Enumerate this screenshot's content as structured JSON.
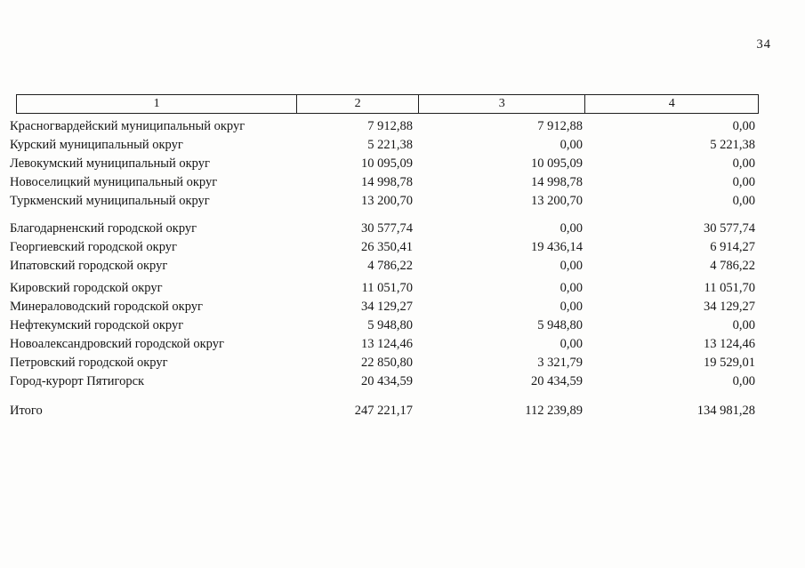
{
  "page": {
    "number": "34",
    "ink_color": "#161616",
    "background_color": "#fdfdfc"
  },
  "table": {
    "columns": [
      "1",
      "2",
      "3",
      "4"
    ],
    "rows": [
      {
        "name": "Красногвардейский муниципальный округ",
        "c2": "7 912,88",
        "c3": "7 912,88",
        "c4": "0,00"
      },
      {
        "name": "Курский муниципальный округ",
        "c2": "5 221,38",
        "c3": "0,00",
        "c4": "5 221,38"
      },
      {
        "name": "Левокумский муниципальный округ",
        "c2": "10 095,09",
        "c3": "10 095,09",
        "c4": "0,00"
      },
      {
        "name": "Новоселицкий муниципальный округ",
        "c2": "14 998,78",
        "c3": "14 998,78",
        "c4": "0,00"
      },
      {
        "name": "Туркменский муниципальный округ",
        "c2": "13 200,70",
        "c3": "13 200,70",
        "c4": "0,00"
      },
      {
        "name": "Благодарненский городской округ",
        "c2": "30 577,74",
        "c3": "0,00",
        "c4": "30 577,74"
      },
      {
        "name": "Георгиевский городской округ",
        "c2": "26 350,41",
        "c3": "19 436,14",
        "c4": "6 914,27"
      },
      {
        "name": "Ипатовский городской округ",
        "c2": "4 786,22",
        "c3": "0,00",
        "c4": "4 786,22"
      },
      {
        "name": "Кировский городской округ",
        "c2": "11 051,70",
        "c3": "0,00",
        "c4": "11 051,70"
      },
      {
        "name": "Минераловодский городской округ",
        "c2": "34 129,27",
        "c3": "0,00",
        "c4": "34 129,27"
      },
      {
        "name": "Нефтекумский городской округ",
        "c2": "5 948,80",
        "c3": "5 948,80",
        "c4": "0,00"
      },
      {
        "name": "Новоалександровский городской округ",
        "c2": "13 124,46",
        "c3": "0,00",
        "c4": "13 124,46"
      },
      {
        "name": "Петровский городской округ",
        "c2": "22 850,80",
        "c3": "3 321,79",
        "c4": "19 529,01"
      },
      {
        "name": "Город-курорт Пятигорск",
        "c2": "20 434,59",
        "c3": "20 434,59",
        "c4": "0,00"
      }
    ],
    "total": {
      "name": "Итого",
      "c2": "247 221,17",
      "c3": "112 239,89",
      "c4": "134 981,28"
    }
  }
}
